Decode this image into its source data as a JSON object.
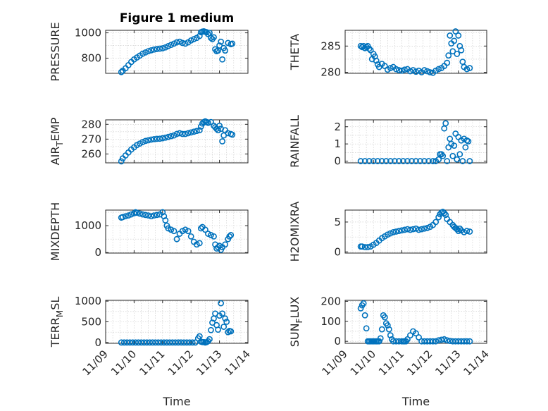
{
  "chart_data": [
    {
      "type": "scatter",
      "title": "Figure 1 medium",
      "ylabel": "PRESSURE",
      "ylim": [
        680,
        1020
      ],
      "yticks": [
        "800",
        "1000"
      ],
      "ytick_values": [
        800,
        1000
      ],
      "xlim": [
        "2015-11-09",
        "2015-11-14"
      ],
      "xticklabels": [],
      "xlabel": "",
      "series": [
        {
          "x": [
            9.55,
            9.6,
            9.7,
            9.8,
            9.9,
            10.0,
            10.1,
            10.2,
            10.3,
            10.4,
            10.5,
            10.6,
            10.7,
            10.8,
            10.9,
            11.0,
            11.1,
            11.2,
            11.3,
            11.4,
            11.5,
            11.6,
            11.7,
            11.8,
            11.9,
            12.0,
            12.1,
            12.2,
            12.3,
            12.35,
            12.4,
            12.45,
            12.5,
            12.55,
            12.6,
            12.65,
            12.7,
            12.75,
            12.8,
            12.85,
            12.9,
            12.95,
            13.0,
            13.05,
            13.1,
            13.15,
            13.2,
            13.3,
            13.4,
            13.45
          ],
          "y": [
            690,
            700,
            720,
            745,
            770,
            790,
            805,
            820,
            835,
            845,
            855,
            862,
            868,
            872,
            875,
            878,
            885,
            895,
            905,
            915,
            925,
            930,
            920,
            915,
            925,
            940,
            950,
            960,
            975,
            1005,
            1010,
            1012,
            1008,
            1005,
            990,
            1000,
            960,
            950,
            965,
            870,
            855,
            860,
            900,
            930,
            790,
            880,
            860,
            920,
            910,
            915
          ]
        }
      ]
    },
    {
      "type": "scatter",
      "ylabel": "THETA",
      "ylim": [
        279.8,
        288
      ],
      "yticks": [
        "280",
        "285"
      ],
      "ytick_values": [
        280,
        285
      ],
      "xlim": [
        "2015-11-09",
        "2015-11-14"
      ],
      "xticklabels": [],
      "series": [
        {
          "x": [
            9.55,
            9.6,
            9.65,
            9.7,
            9.75,
            9.8,
            9.85,
            9.9,
            9.95,
            10.0,
            10.05,
            10.1,
            10.15,
            10.2,
            10.3,
            10.4,
            10.5,
            10.6,
            10.7,
            10.8,
            10.9,
            11.0,
            11.1,
            11.2,
            11.3,
            11.4,
            11.5,
            11.6,
            11.7,
            11.8,
            11.9,
            12.0,
            12.1,
            12.2,
            12.3,
            12.4,
            12.5,
            12.6,
            12.65,
            12.7,
            12.75,
            12.8,
            12.85,
            12.9,
            12.95,
            13.0,
            13.05,
            13.1,
            13.15,
            13.2,
            13.3,
            13.4
          ],
          "y": [
            285,
            284.8,
            285,
            284.6,
            284.8,
            285,
            284.5,
            284.2,
            282.5,
            283.5,
            283,
            282.2,
            281.5,
            281,
            281.6,
            281.2,
            280.5,
            280.8,
            281,
            280.6,
            280.4,
            280.3,
            280.5,
            280.6,
            280.2,
            280.4,
            280.1,
            280.3,
            280,
            280.4,
            280.2,
            280,
            279.9,
            280.3,
            280.6,
            280.8,
            281.2,
            281.8,
            283.2,
            287,
            285.5,
            284,
            286,
            287.8,
            283.5,
            287,
            285,
            284.2,
            282,
            281,
            280.6,
            280.8
          ]
        }
      ]
    },
    {
      "type": "scatter",
      "ylabel": "AIR_TEMP",
      "ylim": [
        254,
        283
      ],
      "yticks": [
        "260",
        "270",
        "280"
      ],
      "ytick_values": [
        260,
        270,
        280
      ],
      "xlim": [
        "2015-11-09",
        "2015-11-14"
      ],
      "xticklabels": [],
      "series": [
        {
          "x": [
            9.55,
            9.6,
            9.7,
            9.8,
            9.9,
            10.0,
            10.1,
            10.2,
            10.3,
            10.4,
            10.5,
            10.6,
            10.7,
            10.8,
            10.9,
            11.0,
            11.1,
            11.2,
            11.3,
            11.4,
            11.5,
            11.6,
            11.7,
            11.8,
            11.9,
            12.0,
            12.1,
            12.2,
            12.3,
            12.35,
            12.4,
            12.45,
            12.5,
            12.55,
            12.6,
            12.7,
            12.8,
            12.85,
            12.9,
            12.95,
            13.0,
            13.05,
            13.1,
            13.15,
            13.2,
            13.3,
            13.4,
            13.45
          ],
          "y": [
            255,
            257,
            259,
            261,
            263,
            264.5,
            266,
            267,
            268,
            268.8,
            269.2,
            269.7,
            270,
            270.2,
            270.3,
            270.6,
            271,
            271.5,
            272,
            272.5,
            273.5,
            274,
            273.5,
            273.5,
            274,
            274.5,
            275,
            275.5,
            276,
            278.5,
            280.5,
            281.5,
            282,
            281.5,
            281,
            281.5,
            279,
            278,
            277,
            276,
            279,
            277,
            268.5,
            272.5,
            276,
            274,
            273.5,
            273
          ]
        }
      ]
    },
    {
      "type": "scatter",
      "ylabel": "RAINFALL",
      "ylim": [
        -0.1,
        2.4
      ],
      "yticks": [
        "0",
        "1",
        "2"
      ],
      "ytick_values": [
        0,
        1,
        2
      ],
      "xlim": [
        "2015-11-09",
        "2015-11-14"
      ],
      "xticklabels": [],
      "series": [
        {
          "x": [
            9.55,
            9.7,
            9.85,
            10.0,
            10.15,
            10.3,
            10.45,
            10.6,
            10.75,
            10.9,
            11.05,
            11.2,
            11.35,
            11.5,
            11.65,
            11.8,
            11.95,
            12.1,
            12.2,
            12.3,
            12.35,
            12.4,
            12.45,
            12.5,
            12.55,
            12.6,
            12.65,
            12.7,
            12.75,
            12.8,
            12.85,
            12.9,
            12.95,
            13.0,
            13.05,
            13.1,
            13.15,
            13.2,
            13.25,
            13.3,
            13.35,
            13.4
          ],
          "y": [
            0,
            0,
            0,
            0,
            0,
            0,
            0,
            0,
            0,
            0,
            0,
            0,
            0,
            0,
            0,
            0,
            0,
            0,
            0,
            0.1,
            0.4,
            0.4,
            0.3,
            1.9,
            2.2,
            0,
            0.8,
            1.3,
            1.0,
            0.3,
            0.9,
            1.6,
            0.1,
            1.4,
            0.4,
            1.2,
            0,
            1.3,
            0.8,
            1.2,
            1.15,
            0
          ]
        }
      ]
    },
    {
      "type": "scatter",
      "ylabel": "MIXDEPTH",
      "ylim": [
        -20,
        1580
      ],
      "yticks": [
        "0",
        "1000"
      ],
      "ytick_values": [
        0,
        1000
      ],
      "xlim": [
        "2015-11-09",
        "2015-11-14"
      ],
      "xticklabels": [],
      "series": [
        {
          "x": [
            9.55,
            9.6,
            9.7,
            9.8,
            9.9,
            10.0,
            10.05,
            10.1,
            10.2,
            10.3,
            10.4,
            10.5,
            10.6,
            10.7,
            10.8,
            10.9,
            11.0,
            11.05,
            11.1,
            11.15,
            11.2,
            11.3,
            11.4,
            11.5,
            11.6,
            11.7,
            11.8,
            11.9,
            12.0,
            12.1,
            12.2,
            12.3,
            12.35,
            12.4,
            12.5,
            12.6,
            12.7,
            12.8,
            12.85,
            12.9,
            12.95,
            13.0,
            13.05,
            13.1,
            13.2,
            13.3,
            13.35,
            13.4
          ],
          "y": [
            1300,
            1320,
            1350,
            1380,
            1420,
            1460,
            1500,
            1480,
            1450,
            1420,
            1400,
            1380,
            1350,
            1380,
            1400,
            1420,
            1500,
            1350,
            1200,
            1000,
            900,
            850,
            800,
            500,
            700,
            800,
            850,
            800,
            600,
            400,
            300,
            350,
            900,
            950,
            850,
            700,
            650,
            600,
            300,
            150,
            200,
            250,
            100,
            200,
            300,
            500,
            600,
            650
          ]
        }
      ]
    },
    {
      "type": "scatter",
      "ylabel": "H2OMIXRA",
      "ylim": [
        -0.2,
        7
      ],
      "yticks": [
        "0",
        "5"
      ],
      "ytick_values": [
        0,
        5
      ],
      "xlim": [
        "2015-11-09",
        "2015-11-14"
      ],
      "xticklabels": [],
      "series": [
        {
          "x": [
            9.55,
            9.6,
            9.7,
            9.8,
            9.9,
            10.0,
            10.1,
            10.2,
            10.3,
            10.4,
            10.5,
            10.6,
            10.7,
            10.8,
            10.9,
            11.0,
            11.1,
            11.2,
            11.3,
            11.4,
            11.5,
            11.6,
            11.7,
            11.8,
            11.9,
            12.0,
            12.1,
            12.2,
            12.3,
            12.35,
            12.4,
            12.45,
            12.5,
            12.55,
            12.6,
            12.7,
            12.8,
            12.85,
            12.9,
            12.95,
            13.0,
            13.05,
            13.1,
            13.2,
            13.3,
            13.4
          ],
          "y": [
            0.9,
            0.9,
            0.8,
            0.8,
            0.9,
            1.2,
            1.5,
            1.9,
            2.3,
            2.6,
            2.9,
            3.1,
            3.3,
            3.4,
            3.5,
            3.6,
            3.7,
            3.8,
            3.7,
            3.8,
            3.9,
            3.7,
            3.8,
            3.9,
            4.0,
            4.2,
            4.5,
            5.0,
            5.8,
            6.3,
            6.6,
            6.7,
            6.5,
            6.2,
            5.5,
            5.0,
            4.5,
            4.2,
            4.0,
            3.8,
            3.5,
            3.9,
            3.6,
            3.3,
            3.5,
            3.4
          ]
        }
      ]
    },
    {
      "type": "scatter",
      "ylabel": "TERR_MSL",
      "ylim": [
        -20,
        1020
      ],
      "yticks": [
        "0",
        "500",
        "1000"
      ],
      "ytick_values": [
        0,
        500,
        1000
      ],
      "xlim": [
        "2015-11-09",
        "2015-11-14"
      ],
      "xticklabels": [
        "11/09",
        "11/10",
        "11/11",
        "11/12",
        "11/13",
        "11/14"
      ],
      "xlabel": "Time",
      "series": [
        {
          "x": [
            9.55,
            9.65,
            9.75,
            9.85,
            9.95,
            10.05,
            10.15,
            10.25,
            10.35,
            10.45,
            10.55,
            10.65,
            10.75,
            10.85,
            10.95,
            11.05,
            11.15,
            11.25,
            11.35,
            11.45,
            11.55,
            11.65,
            11.75,
            11.85,
            11.95,
            12.05,
            12.15,
            12.25,
            12.3,
            12.35,
            12.4,
            12.45,
            12.5,
            12.55,
            12.6,
            12.65,
            12.7,
            12.75,
            12.8,
            12.85,
            12.9,
            12.95,
            13.0,
            13.05,
            13.1,
            13.15,
            13.2,
            13.25,
            13.3,
            13.35,
            13.4
          ],
          "y": [
            0,
            0,
            0,
            0,
            0,
            0,
            0,
            0,
            0,
            0,
            0,
            0,
            0,
            0,
            0,
            0,
            0,
            0,
            0,
            0,
            0,
            0,
            0,
            0,
            0,
            0,
            0,
            100,
            150,
            20,
            10,
            10,
            0,
            10,
            30,
            80,
            300,
            480,
            580,
            700,
            420,
            310,
            650,
            950,
            700,
            380,
            580,
            500,
            250,
            280,
            270
          ]
        }
      ]
    },
    {
      "type": "scatter",
      "ylabel": "SUN_FLUX",
      "ylim": [
        -10,
        205
      ],
      "yticks": [
        "0",
        "100",
        "200"
      ],
      "ytick_values": [
        0,
        100,
        200
      ],
      "xlim": [
        "2015-11-09",
        "2015-11-14"
      ],
      "xticklabels": [
        "11/09",
        "11/10",
        "11/11",
        "11/12",
        "11/13",
        "11/14"
      ],
      "xlabel": "Time",
      "series": [
        {
          "x": [
            9.55,
            9.6,
            9.65,
            9.7,
            9.75,
            9.8,
            9.85,
            9.9,
            9.95,
            10.0,
            10.05,
            10.1,
            10.15,
            10.2,
            10.25,
            10.3,
            10.35,
            10.4,
            10.45,
            10.5,
            10.55,
            10.6,
            10.65,
            10.7,
            10.8,
            10.9,
            11.0,
            11.05,
            11.1,
            11.15,
            11.2,
            11.3,
            11.4,
            11.5,
            11.6,
            11.7,
            11.8,
            11.9,
            12.0,
            12.1,
            12.2,
            12.3,
            12.4,
            12.5,
            12.6,
            12.7,
            12.8,
            12.9,
            13.0,
            13.1,
            13.2,
            13.3,
            13.4
          ],
          "y": [
            165,
            180,
            190,
            130,
            65,
            0,
            0,
            0,
            0,
            0,
            0,
            0,
            0,
            0,
            15,
            60,
            130,
            120,
            90,
            80,
            60,
            30,
            10,
            0,
            0,
            0,
            0,
            0,
            0,
            0,
            10,
            30,
            50,
            40,
            20,
            0,
            0,
            0,
            0,
            0,
            0,
            5,
            8,
            10,
            5,
            2,
            0,
            0,
            0,
            0,
            0,
            0,
            0
          ]
        }
      ]
    }
  ]
}
